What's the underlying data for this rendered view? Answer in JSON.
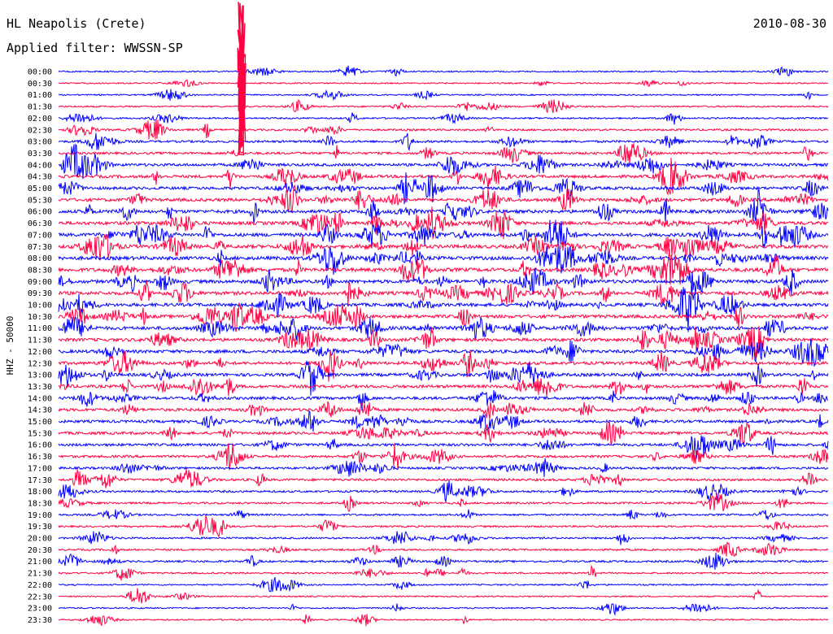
{
  "header": {
    "station": "HL Neapolis (Crete)",
    "filter": "Applied filter: WWSSN-SP",
    "date": "2010-08-30"
  },
  "colors": {
    "trace_a": "#0000ff",
    "trace_b": "#ff0040",
    "background": "#ffffff",
    "text": "#000000"
  },
  "chart_data": {
    "type": "line",
    "title": "HL Neapolis (Crete)",
    "subtitle": "Applied filter: WWSSN-SP",
    "ylabel": "HHZ - 50000",
    "xlabel": "",
    "row_labels": [
      "00:00",
      "00:30",
      "01:00",
      "01:30",
      "02:00",
      "02:30",
      "03:00",
      "03:30",
      "04:00",
      "04:30",
      "05:00",
      "05:30",
      "06:00",
      "06:30",
      "07:00",
      "07:30",
      "08:00",
      "08:30",
      "09:00",
      "09:30",
      "10:00",
      "10:30",
      "11:00",
      "11:30",
      "12:00",
      "12:30",
      "13:00",
      "13:30",
      "14:00",
      "14:30",
      "15:00",
      "15:30",
      "16:00",
      "16:30",
      "17:00",
      "17:30",
      "18:00",
      "18:30",
      "19:00",
      "19:30",
      "20:00",
      "20:30",
      "21:00",
      "21:30",
      "22:00",
      "22:30",
      "23:00",
      "23:30"
    ],
    "color_cycle": [
      "blue",
      "red"
    ],
    "row_activity": [
      0.15,
      0.12,
      0.12,
      0.2,
      0.22,
      0.35,
      0.45,
      0.5,
      0.65,
      0.7,
      0.7,
      0.8,
      0.85,
      0.85,
      0.9,
      0.95,
      0.95,
      0.95,
      0.9,
      0.9,
      0.85,
      0.85,
      0.85,
      0.8,
      0.8,
      0.75,
      0.75,
      0.7,
      0.7,
      0.7,
      0.65,
      0.65,
      0.6,
      0.55,
      0.5,
      0.5,
      0.4,
      0.35,
      0.3,
      0.3,
      0.3,
      0.3,
      0.35,
      0.25,
      0.15,
      0.12,
      0.15,
      0.12
    ],
    "grid": false,
    "legend": "none"
  }
}
